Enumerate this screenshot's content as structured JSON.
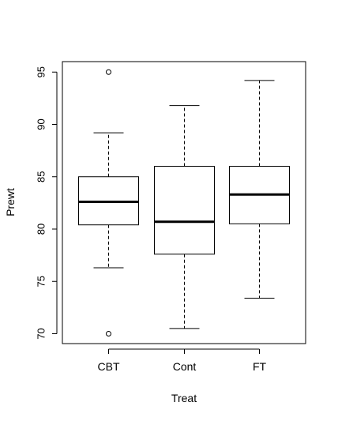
{
  "chart_data": {
    "type": "boxplot",
    "title": "",
    "xlabel": "Treat",
    "ylabel": "Prewt",
    "categories": [
      "CBT",
      "Cont",
      "FT"
    ],
    "ylim": [
      69,
      96
    ],
    "yticks": [
      70,
      75,
      80,
      85,
      90,
      95
    ],
    "ytick_labels": [
      "70",
      "75",
      "80",
      "85",
      "90",
      "95"
    ],
    "grid": false,
    "boxes": [
      {
        "category": "CBT",
        "whisker_low": 76.3,
        "q1": 80.4,
        "median": 82.6,
        "q3": 85.0,
        "whisker_high": 89.2,
        "outliers": [
          95.0,
          70.0
        ]
      },
      {
        "category": "Cont",
        "whisker_low": 70.5,
        "q1": 77.6,
        "median": 80.7,
        "q3": 86.0,
        "whisker_high": 91.8,
        "outliers": []
      },
      {
        "category": "FT",
        "whisker_low": 73.4,
        "q1": 80.5,
        "median": 83.3,
        "q3": 86.0,
        "whisker_high": 94.2,
        "outliers": []
      }
    ]
  }
}
